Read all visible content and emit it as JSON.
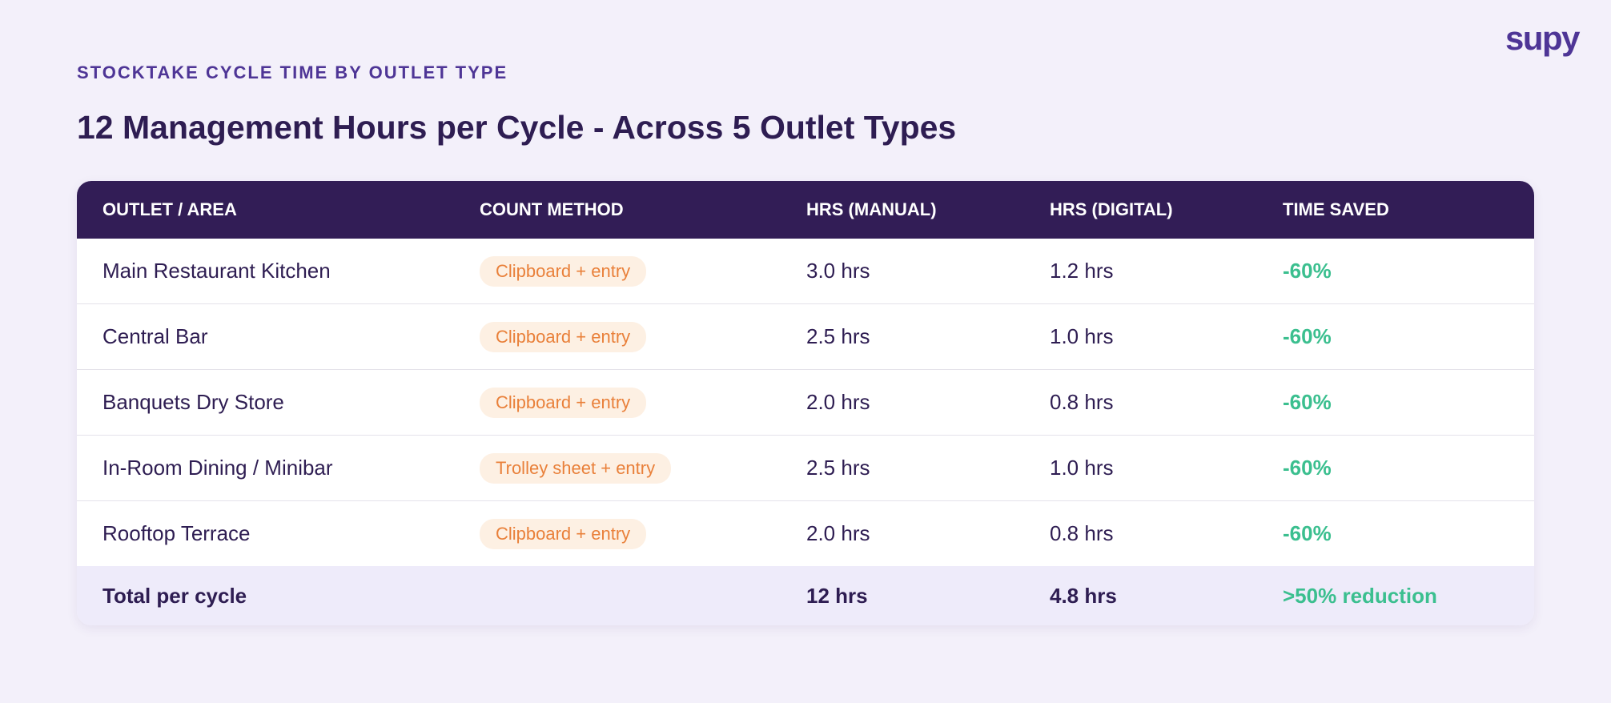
{
  "logo": "supy",
  "header": {
    "eyebrow": "STOCKTAKE CYCLE TIME BY OUTLET TYPE",
    "title": "12 Management Hours per Cycle - Across 5 Outlet Types"
  },
  "table": {
    "columns": [
      "OUTLET / AREA",
      "COUNT METHOD",
      "HRS (MANUAL)",
      "HRS (DIGITAL)",
      "TIME SAVED"
    ],
    "rows": [
      [
        "Main Restaurant Kitchen",
        "Clipboard + entry",
        "3.0 hrs",
        "1.2 hrs",
        "-60%"
      ],
      [
        "Central Bar",
        "Clipboard + entry",
        "2.5 hrs",
        "1.0 hrs",
        "-60%"
      ],
      [
        "Banquets Dry Store",
        "Clipboard + entry",
        "2.0 hrs",
        "0.8 hrs",
        "-60%"
      ],
      [
        "In-Room Dining / Minibar",
        "Trolley sheet + entry",
        "2.5 hrs",
        "1.0 hrs",
        "-60%"
      ],
      [
        "Rooftop Terrace",
        "Clipboard + entry",
        "2.0 hrs",
        "0.8 hrs",
        "-60%"
      ]
    ],
    "total": {
      "label": "Total per cycle",
      "manual": "12 hrs",
      "digital": "4.8 hrs",
      "saved": ">50% reduction"
    }
  }
}
